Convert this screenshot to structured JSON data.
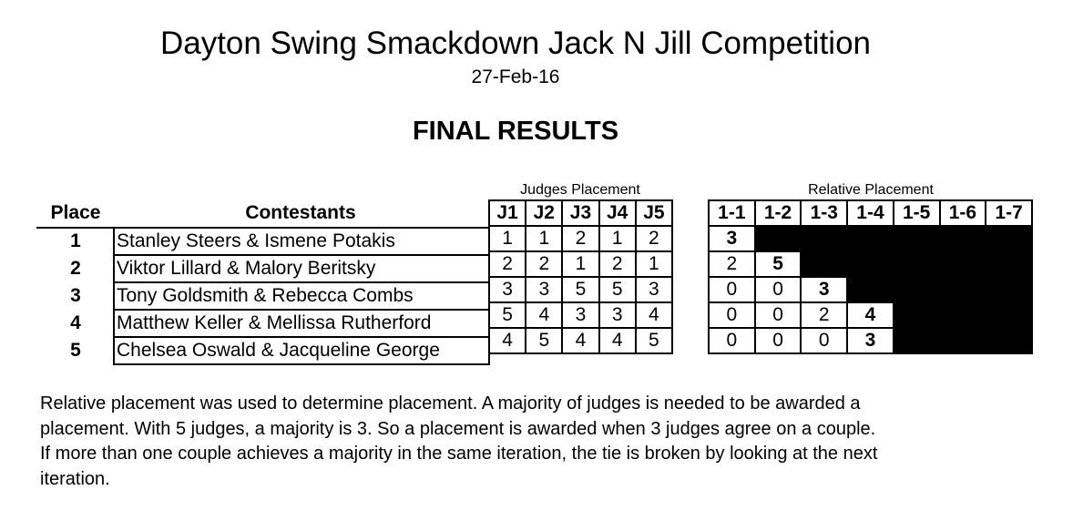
{
  "header": {
    "title": "Dayton Swing Smackdown Jack N Jill Competition",
    "date": "27-Feb-16",
    "subtitle": "FINAL RESULTS"
  },
  "table": {
    "judges_label": "Judges Placement",
    "relative_label": "Relative Placement",
    "place_header": "Place",
    "contestants_header": "Contestants",
    "judge_headers": [
      "J1",
      "J2",
      "J3",
      "J4",
      "J5"
    ],
    "relative_headers": [
      "1-1",
      "1-2",
      "1-3",
      "1-4",
      "1-5",
      "1-6",
      "1-7"
    ],
    "rows": [
      {
        "place": "1",
        "contestants": "Stanley Steers & Ismene Potakis",
        "judges": [
          "1",
          "1",
          "2",
          "1",
          "2"
        ],
        "relative": [
          "3"
        ]
      },
      {
        "place": "2",
        "contestants": "Viktor Lillard & Malory Beritsky",
        "judges": [
          "2",
          "2",
          "1",
          "2",
          "1"
        ],
        "relative": [
          "2",
          "5"
        ]
      },
      {
        "place": "3",
        "contestants": "Tony Goldsmith & Rebecca Combs",
        "judges": [
          "3",
          "3",
          "5",
          "5",
          "3"
        ],
        "relative": [
          "0",
          "0",
          "3"
        ]
      },
      {
        "place": "4",
        "contestants": "Matthew Keller & Mellissa Rutherford",
        "judges": [
          "5",
          "4",
          "3",
          "3",
          "4"
        ],
        "relative": [
          "0",
          "0",
          "2",
          "4"
        ]
      },
      {
        "place": "5",
        "contestants": "Chelsea Oswald & Jacqueline George",
        "judges": [
          "4",
          "5",
          "4",
          "4",
          "5"
        ],
        "relative": [
          "0",
          "0",
          "0",
          "3"
        ]
      }
    ]
  },
  "footer": {
    "paragraph": [
      "Relative placement was used to determine placement.  A majority of judges is needed to be awarded a",
      "placement.  With 5 judges, a majority is 3.  So a placement is awarded when 3 judges agree on a couple.",
      "If more than one couple achieves a majority in the same iteration, the tie is broken by looking at the next",
      "iteration."
    ]
  }
}
